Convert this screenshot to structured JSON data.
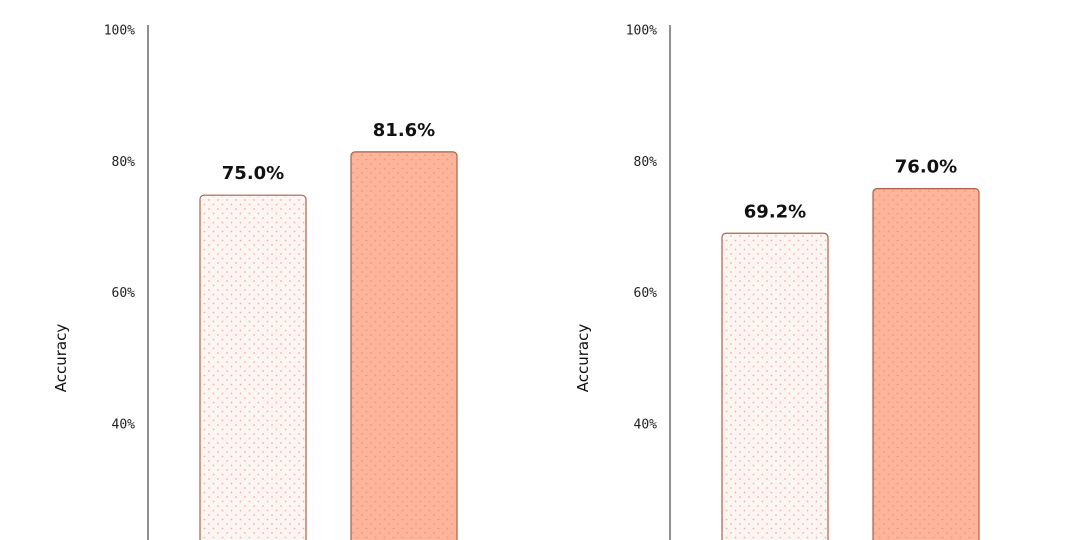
{
  "chart_data": [
    {
      "type": "bar",
      "ylabel": "Accuracy",
      "values": [
        75.0,
        81.6
      ],
      "value_labels": [
        "75.0%",
        "81.6%"
      ],
      "colors": [
        "#fdf5f1",
        "#fcb59b"
      ],
      "edge_color": "#a9614a",
      "ylim": [
        22.5,
        100
      ],
      "yticks": [
        {
          "value": 40,
          "label": "40%"
        },
        {
          "value": 60,
          "label": "60%"
        },
        {
          "value": 80,
          "label": "80%"
        },
        {
          "value": 100,
          "label": "100%"
        }
      ]
    },
    {
      "type": "bar",
      "ylabel": "Accuracy",
      "values": [
        69.2,
        76.0
      ],
      "value_labels": [
        "69.2%",
        "76.0%"
      ],
      "colors": [
        "#fdf5f1",
        "#fcb59b"
      ],
      "edge_color": "#a9614a",
      "ylim": [
        22.5,
        100
      ],
      "yticks": [
        {
          "value": 40,
          "label": "40%"
        },
        {
          "value": 60,
          "label": "60%"
        },
        {
          "value": 80,
          "label": "80%"
        },
        {
          "value": 100,
          "label": "100%"
        }
      ]
    }
  ]
}
